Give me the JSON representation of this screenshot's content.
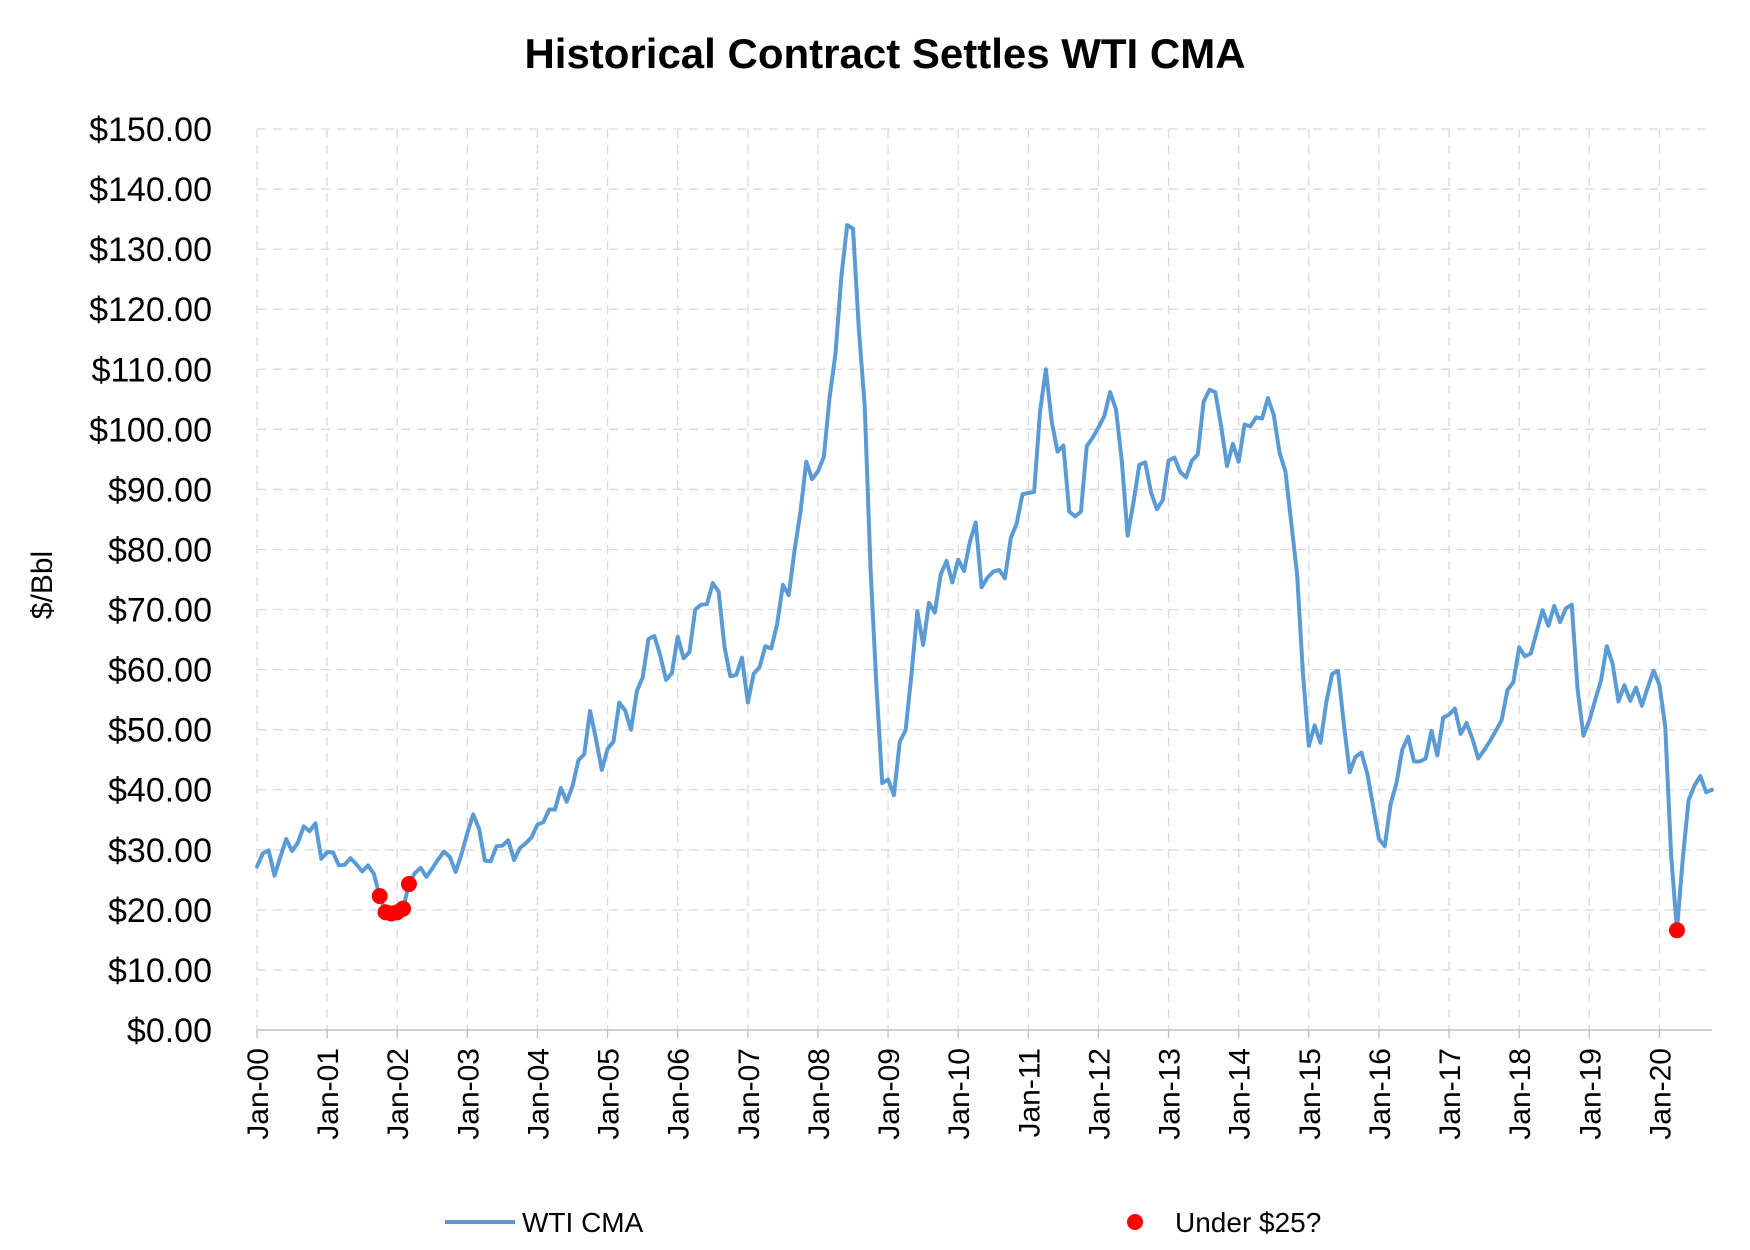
{
  "chart_data": {
    "type": "line",
    "title": "Historical Contract Settles WTI CMA",
    "ylabel": "$/Bbl",
    "xlabel": "",
    "ylim": [
      0,
      150
    ],
    "x_range": [
      "Jan-00",
      "Oct-20"
    ],
    "grid": true,
    "legend_position": "bottom",
    "y_ticks": [
      "$0.00",
      "$10.00",
      "$20.00",
      "$30.00",
      "$40.00",
      "$50.00",
      "$60.00",
      "$70.00",
      "$80.00",
      "$90.00",
      "$100.00",
      "$110.00",
      "$120.00",
      "$130.00",
      "$140.00",
      "$150.00"
    ],
    "x_ticks": [
      "Jan-00",
      "Jan-01",
      "Jan-02",
      "Jan-03",
      "Jan-04",
      "Jan-05",
      "Jan-06",
      "Jan-07",
      "Jan-08",
      "Jan-09",
      "Jan-10",
      "Jan-11",
      "Jan-12",
      "Jan-13",
      "Jan-14",
      "Jan-15",
      "Jan-16",
      "Jan-17",
      "Jan-18",
      "Jan-19",
      "Jan-20"
    ],
    "series": [
      {
        "name": "WTI CMA",
        "color": "#5b9bd5",
        "style": "line",
        "x": [
          "Jan-00",
          "Feb-00",
          "Mar-00",
          "Apr-00",
          "May-00",
          "Jun-00",
          "Jul-00",
          "Aug-00",
          "Sep-00",
          "Oct-00",
          "Nov-00",
          "Dec-00",
          "Jan-01",
          "Feb-01",
          "Mar-01",
          "Apr-01",
          "May-01",
          "Jun-01",
          "Jul-01",
          "Aug-01",
          "Sep-01",
          "Oct-01",
          "Nov-01",
          "Dec-01",
          "Jan-02",
          "Feb-02",
          "Mar-02",
          "Apr-02",
          "May-02",
          "Jun-02",
          "Jul-02",
          "Aug-02",
          "Sep-02",
          "Oct-02",
          "Nov-02",
          "Dec-02",
          "Jan-03",
          "Feb-03",
          "Mar-03",
          "Apr-03",
          "May-03",
          "Jun-03",
          "Jul-03",
          "Aug-03",
          "Sep-03",
          "Oct-03",
          "Nov-03",
          "Dec-03",
          "Jan-04",
          "Feb-04",
          "Mar-04",
          "Apr-04",
          "May-04",
          "Jun-04",
          "Jul-04",
          "Aug-04",
          "Sep-04",
          "Oct-04",
          "Nov-04",
          "Dec-04",
          "Jan-05",
          "Feb-05",
          "Mar-05",
          "Apr-05",
          "May-05",
          "Jun-05",
          "Jul-05",
          "Aug-05",
          "Sep-05",
          "Oct-05",
          "Nov-05",
          "Dec-05",
          "Jan-06",
          "Feb-06",
          "Mar-06",
          "Apr-06",
          "May-06",
          "Jun-06",
          "Jul-06",
          "Aug-06",
          "Sep-06",
          "Oct-06",
          "Nov-06",
          "Dec-06",
          "Jan-07",
          "Feb-07",
          "Mar-07",
          "Apr-07",
          "May-07",
          "Jun-07",
          "Jul-07",
          "Aug-07",
          "Sep-07",
          "Oct-07",
          "Nov-07",
          "Dec-07",
          "Jan-08",
          "Feb-08",
          "Mar-08",
          "Apr-08",
          "May-08",
          "Jun-08",
          "Jul-08",
          "Aug-08",
          "Sep-08",
          "Oct-08",
          "Nov-08",
          "Dec-08",
          "Jan-09",
          "Feb-09",
          "Mar-09",
          "Apr-09",
          "May-09",
          "Jun-09",
          "Jul-09",
          "Aug-09",
          "Sep-09",
          "Oct-09",
          "Nov-09",
          "Dec-09",
          "Jan-10",
          "Feb-10",
          "Mar-10",
          "Apr-10",
          "May-10",
          "Jun-10",
          "Jul-10",
          "Aug-10",
          "Sep-10",
          "Oct-10",
          "Nov-10",
          "Dec-10",
          "Jan-11",
          "Feb-11",
          "Mar-11",
          "Apr-11",
          "May-11",
          "Jun-11",
          "Jul-11",
          "Aug-11",
          "Sep-11",
          "Oct-11",
          "Nov-11",
          "Dec-11",
          "Jan-12",
          "Feb-12",
          "Mar-12",
          "Apr-12",
          "May-12",
          "Jun-12",
          "Jul-12",
          "Aug-12",
          "Sep-12",
          "Oct-12",
          "Nov-12",
          "Dec-12",
          "Jan-13",
          "Feb-13",
          "Mar-13",
          "Apr-13",
          "May-13",
          "Jun-13",
          "Jul-13",
          "Aug-13",
          "Sep-13",
          "Oct-13",
          "Nov-13",
          "Dec-13",
          "Jan-14",
          "Feb-14",
          "Mar-14",
          "Apr-14",
          "May-14",
          "Jun-14",
          "Jul-14",
          "Aug-14",
          "Sep-14",
          "Oct-14",
          "Nov-14",
          "Dec-14",
          "Jan-15",
          "Feb-15",
          "Mar-15",
          "Apr-15",
          "May-15",
          "Jun-15",
          "Jul-15",
          "Aug-15",
          "Sep-15",
          "Oct-15",
          "Nov-15",
          "Dec-15",
          "Jan-16",
          "Feb-16",
          "Mar-16",
          "Apr-16",
          "May-16",
          "Jun-16",
          "Jul-16",
          "Aug-16",
          "Sep-16",
          "Oct-16",
          "Nov-16",
          "Dec-16",
          "Jan-17",
          "Feb-17",
          "Mar-17",
          "Apr-17",
          "May-17",
          "Jun-17",
          "Jul-17",
          "Aug-17",
          "Sep-17",
          "Oct-17",
          "Nov-17",
          "Dec-17",
          "Jan-18",
          "Feb-18",
          "Mar-18",
          "Apr-18",
          "May-18",
          "Jun-18",
          "Jul-18",
          "Aug-18",
          "Sep-18",
          "Oct-18",
          "Nov-18",
          "Dec-18",
          "Jan-19",
          "Feb-19",
          "Mar-19",
          "Apr-19",
          "May-19",
          "Jun-19",
          "Jul-19",
          "Aug-19",
          "Sep-19",
          "Oct-19",
          "Nov-19",
          "Dec-19",
          "Jan-20",
          "Feb-20",
          "Mar-20",
          "Apr-20",
          "May-20",
          "Jun-20",
          "Jul-20",
          "Aug-20",
          "Sep-20",
          "Oct-20"
        ],
        "values": [
          27.2,
          29.4,
          29.9,
          25.7,
          28.8,
          31.8,
          29.8,
          31.2,
          33.9,
          33.1,
          34.4,
          28.5,
          29.6,
          29.6,
          27.4,
          27.5,
          28.6,
          27.6,
          26.4,
          27.4,
          26.0,
          22.3,
          19.6,
          19.4,
          19.6,
          20.2,
          24.3,
          26.1,
          27.0,
          25.5,
          26.9,
          28.4,
          29.7,
          28.8,
          26.3,
          29.3,
          32.8,
          35.9,
          33.5,
          28.2,
          28.1,
          30.6,
          30.7,
          31.6,
          28.3,
          30.3,
          31.1,
          32.1,
          34.2,
          34.6,
          36.7,
          36.7,
          40.3,
          38.0,
          40.6,
          44.9,
          45.9,
          53.1,
          48.5,
          43.3,
          46.8,
          48.0,
          54.5,
          53.2,
          50.0,
          56.4,
          58.7,
          65.1,
          65.6,
          62.4,
          58.3,
          59.4,
          65.5,
          61.9,
          62.9,
          70.0,
          70.8,
          70.9,
          74.4,
          73.0,
          63.8,
          58.9,
          59.1,
          62.0,
          54.5,
          59.3,
          60.4,
          63.9,
          63.5,
          67.5,
          74.1,
          72.4,
          79.9,
          86.2,
          94.6,
          91.7,
          93.0,
          95.4,
          105.4,
          112.6,
          125.4,
          134.0,
          133.4,
          116.6,
          103.9,
          76.7,
          57.4,
          41.1,
          41.7,
          39.1,
          48.0,
          49.9,
          59.2,
          69.7,
          64.1,
          71.1,
          69.5,
          75.8,
          78.1,
          74.5,
          78.3,
          76.4,
          81.3,
          84.5,
          73.7,
          75.3,
          76.3,
          76.6,
          75.2,
          81.9,
          84.3,
          89.2,
          89.4,
          89.6,
          102.9,
          110.0,
          101.3,
          96.3,
          97.3,
          86.3,
          85.5,
          86.3,
          97.2,
          98.6,
          100.3,
          102.2,
          106.2,
          103.3,
          94.7,
          82.3,
          87.9,
          94.1,
          94.5,
          89.5,
          86.7,
          88.2,
          94.8,
          95.3,
          92.9,
          92.0,
          94.8,
          95.8,
          104.6,
          106.6,
          106.2,
          100.5,
          93.9,
          97.6,
          94.6,
          100.8,
          100.5,
          102.0,
          101.8,
          105.2,
          102.4,
          96.1,
          93.0,
          84.4,
          75.8,
          59.3,
          47.3,
          50.7,
          47.8,
          54.6,
          59.3,
          59.8,
          50.9,
          42.9,
          45.5,
          46.2,
          42.7,
          37.3,
          31.8,
          30.6,
          37.6,
          41.1,
          46.7,
          48.8,
          44.7,
          44.7,
          45.2,
          49.8,
          45.7,
          52.0,
          52.5,
          53.5,
          49.3,
          51.1,
          48.5,
          45.2,
          46.6,
          48.1,
          49.8,
          51.6,
          56.6,
          57.9,
          63.7,
          62.2,
          62.7,
          66.3,
          69.9,
          67.3,
          70.6,
          67.9,
          70.2,
          70.8,
          56.7,
          49.0,
          51.5,
          54.9,
          58.2,
          63.9,
          60.9,
          54.7,
          57.4,
          54.8,
          57.0,
          54.0,
          57.0,
          59.8,
          57.5,
          50.5,
          29.2,
          16.6,
          28.5,
          38.3,
          40.7,
          42.3,
          39.6,
          40.0
        ]
      },
      {
        "name": "Under $25?",
        "color": "#ff0000",
        "style": "marker",
        "x": [
          "Oct-01",
          "Nov-01",
          "Dec-01",
          "Jan-02",
          "Feb-02",
          "Mar-02",
          "Apr-20"
        ],
        "values": [
          22.3,
          19.6,
          19.4,
          19.6,
          20.2,
          24.3,
          16.6
        ]
      }
    ]
  }
}
